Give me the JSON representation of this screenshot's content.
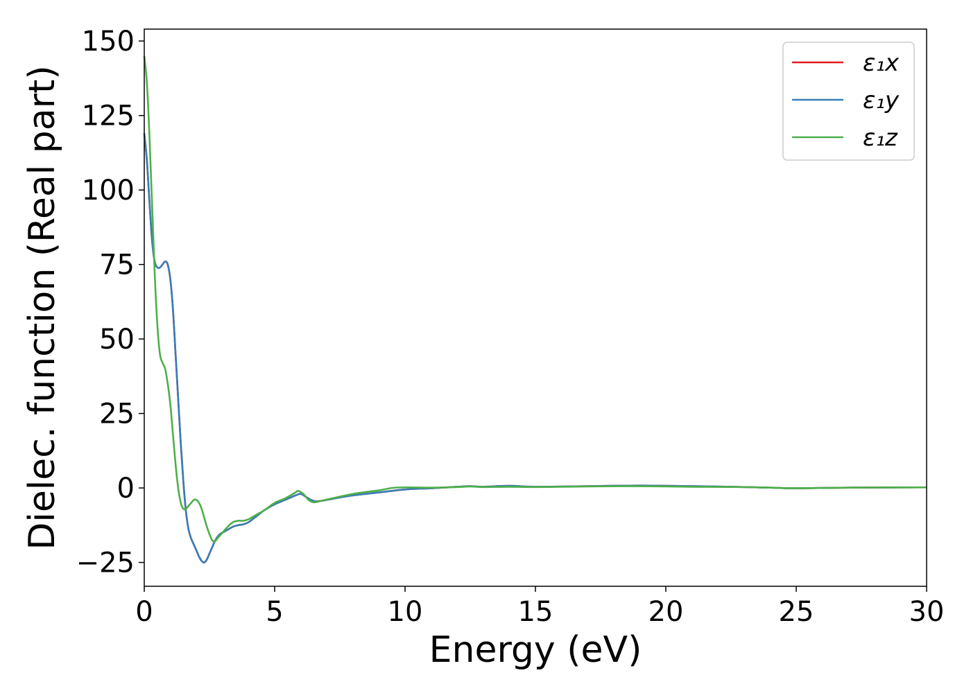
{
  "chart_data": {
    "type": "line",
    "title": "",
    "xlabel": "Energy (eV)",
    "ylabel": "Dielec. function (Real part)",
    "xlim": [
      0,
      30
    ],
    "ylim": [
      -33,
      154
    ],
    "xticks": [
      0,
      5,
      10,
      15,
      20,
      25,
      30
    ],
    "xtick_labels": [
      "0",
      "5",
      "10",
      "15",
      "20",
      "25",
      "30"
    ],
    "yticks": [
      -25,
      0,
      25,
      50,
      75,
      100,
      125,
      150
    ],
    "ytick_labels": [
      "−25",
      "0",
      "25",
      "50",
      "75",
      "100",
      "125",
      "150"
    ],
    "grid": false,
    "legend_position": "top-right",
    "series": [
      {
        "name": "ε₁x",
        "color": "#e41a1c",
        "x": [
          0,
          0.1,
          0.2,
          0.3,
          0.4,
          0.5,
          0.6,
          0.7,
          0.8,
          0.9,
          1.0,
          1.1,
          1.2,
          1.3,
          1.4,
          1.5,
          1.6,
          1.7,
          1.8,
          1.9,
          2.0,
          2.1,
          2.2,
          2.3,
          2.4,
          2.5,
          2.6,
          2.7,
          2.8,
          2.9,
          3.0,
          3.2,
          3.4,
          3.6,
          3.8,
          4.0,
          4.3,
          4.6,
          5.0,
          5.4,
          5.8,
          6.0,
          6.2,
          6.4,
          6.6,
          7.0,
          7.5,
          8.0,
          9.0,
          10.0,
          11.0,
          12.0,
          12.5,
          13.0,
          14.0,
          15.0,
          17.0,
          19.0,
          21.0,
          23.0,
          24.0,
          25.0,
          27.0,
          30.0
        ],
        "y": [
          119,
          110,
          96,
          83,
          76,
          74,
          74,
          75,
          76,
          75,
          70,
          60,
          45,
          30,
          15,
          2,
          -8,
          -14,
          -17,
          -19,
          -21,
          -23,
          -24.5,
          -25,
          -24,
          -22,
          -20,
          -18,
          -16.5,
          -15.5,
          -15,
          -14,
          -13,
          -12.5,
          -12.2,
          -11.5,
          -9.5,
          -7.5,
          -5.5,
          -4,
          -2.5,
          -2,
          -3,
          -4,
          -4.5,
          -4,
          -3.2,
          -2.5,
          -1.5,
          -0.5,
          -0.1,
          0.4,
          0.6,
          0.4,
          0.7,
          0.4,
          0.6,
          0.8,
          0.6,
          0.3,
          0.1,
          -0.1,
          0.1,
          0.2
        ]
      },
      {
        "name": "ε₁y",
        "color": "#377eb8",
        "x": [
          0,
          0.1,
          0.2,
          0.3,
          0.4,
          0.5,
          0.6,
          0.7,
          0.8,
          0.9,
          1.0,
          1.1,
          1.2,
          1.3,
          1.4,
          1.5,
          1.6,
          1.7,
          1.8,
          1.9,
          2.0,
          2.1,
          2.2,
          2.3,
          2.4,
          2.5,
          2.6,
          2.7,
          2.8,
          2.9,
          3.0,
          3.2,
          3.4,
          3.6,
          3.8,
          4.0,
          4.3,
          4.6,
          5.0,
          5.4,
          5.8,
          6.0,
          6.2,
          6.4,
          6.6,
          7.0,
          7.5,
          8.0,
          9.0,
          10.0,
          11.0,
          12.0,
          12.5,
          13.0,
          14.0,
          15.0,
          17.0,
          19.0,
          21.0,
          23.0,
          24.0,
          25.0,
          27.0,
          30.0
        ],
        "y": [
          119,
          110,
          96,
          83,
          76,
          74,
          74,
          75,
          76,
          75,
          70,
          60,
          45,
          30,
          15,
          2,
          -8,
          -14,
          -17,
          -19,
          -21,
          -23,
          -24.5,
          -25,
          -24,
          -22,
          -20,
          -18,
          -16.5,
          -15.5,
          -15,
          -14,
          -13,
          -12.5,
          -12.2,
          -11.5,
          -9.5,
          -7.5,
          -5.5,
          -4,
          -2.5,
          -2,
          -3,
          -4,
          -4.5,
          -4,
          -3.2,
          -2.5,
          -1.5,
          -0.5,
          -0.1,
          0.4,
          0.6,
          0.4,
          0.7,
          0.4,
          0.6,
          0.8,
          0.6,
          0.3,
          0.1,
          -0.1,
          0.1,
          0.2
        ]
      },
      {
        "name": "ε₁z",
        "color": "#4daf4a",
        "x": [
          0,
          0.1,
          0.2,
          0.3,
          0.4,
          0.5,
          0.6,
          0.7,
          0.8,
          0.9,
          1.0,
          1.1,
          1.2,
          1.3,
          1.4,
          1.5,
          1.6,
          1.7,
          1.8,
          1.9,
          2.0,
          2.1,
          2.2,
          2.3,
          2.4,
          2.5,
          2.6,
          2.7,
          2.8,
          2.9,
          3.0,
          3.2,
          3.4,
          3.6,
          3.8,
          4.0,
          4.3,
          4.6,
          5.0,
          5.4,
          5.8,
          5.9,
          6.1,
          6.3,
          6.5,
          6.8,
          7.2,
          8.0,
          9.0,
          9.5,
          10.0,
          11.0,
          12.0,
          12.5,
          13.0,
          14.0,
          15.0,
          17.0,
          19.0,
          21.0,
          23.0,
          24.0,
          25.0,
          27.0,
          30.0
        ],
        "y": [
          145,
          136,
          118,
          95,
          72,
          55,
          45,
          42,
          40,
          35,
          28,
          18,
          8,
          0,
          -5,
          -7,
          -7,
          -6,
          -5,
          -4,
          -4,
          -5,
          -7,
          -10,
          -13,
          -15.5,
          -17.5,
          -18,
          -17,
          -16,
          -15,
          -13,
          -11.5,
          -11,
          -11,
          -10.5,
          -9,
          -7.5,
          -5,
          -3.5,
          -1.5,
          -1,
          -2,
          -4,
          -4.8,
          -4.3,
          -3.5,
          -2,
          -0.8,
          0,
          0.2,
          0.1,
          0.3,
          0.5,
          0.3,
          0.4,
          0.3,
          0.5,
          0.6,
          0.4,
          0.3,
          0.1,
          -0.1,
          0.1,
          0.2
        ]
      }
    ]
  }
}
